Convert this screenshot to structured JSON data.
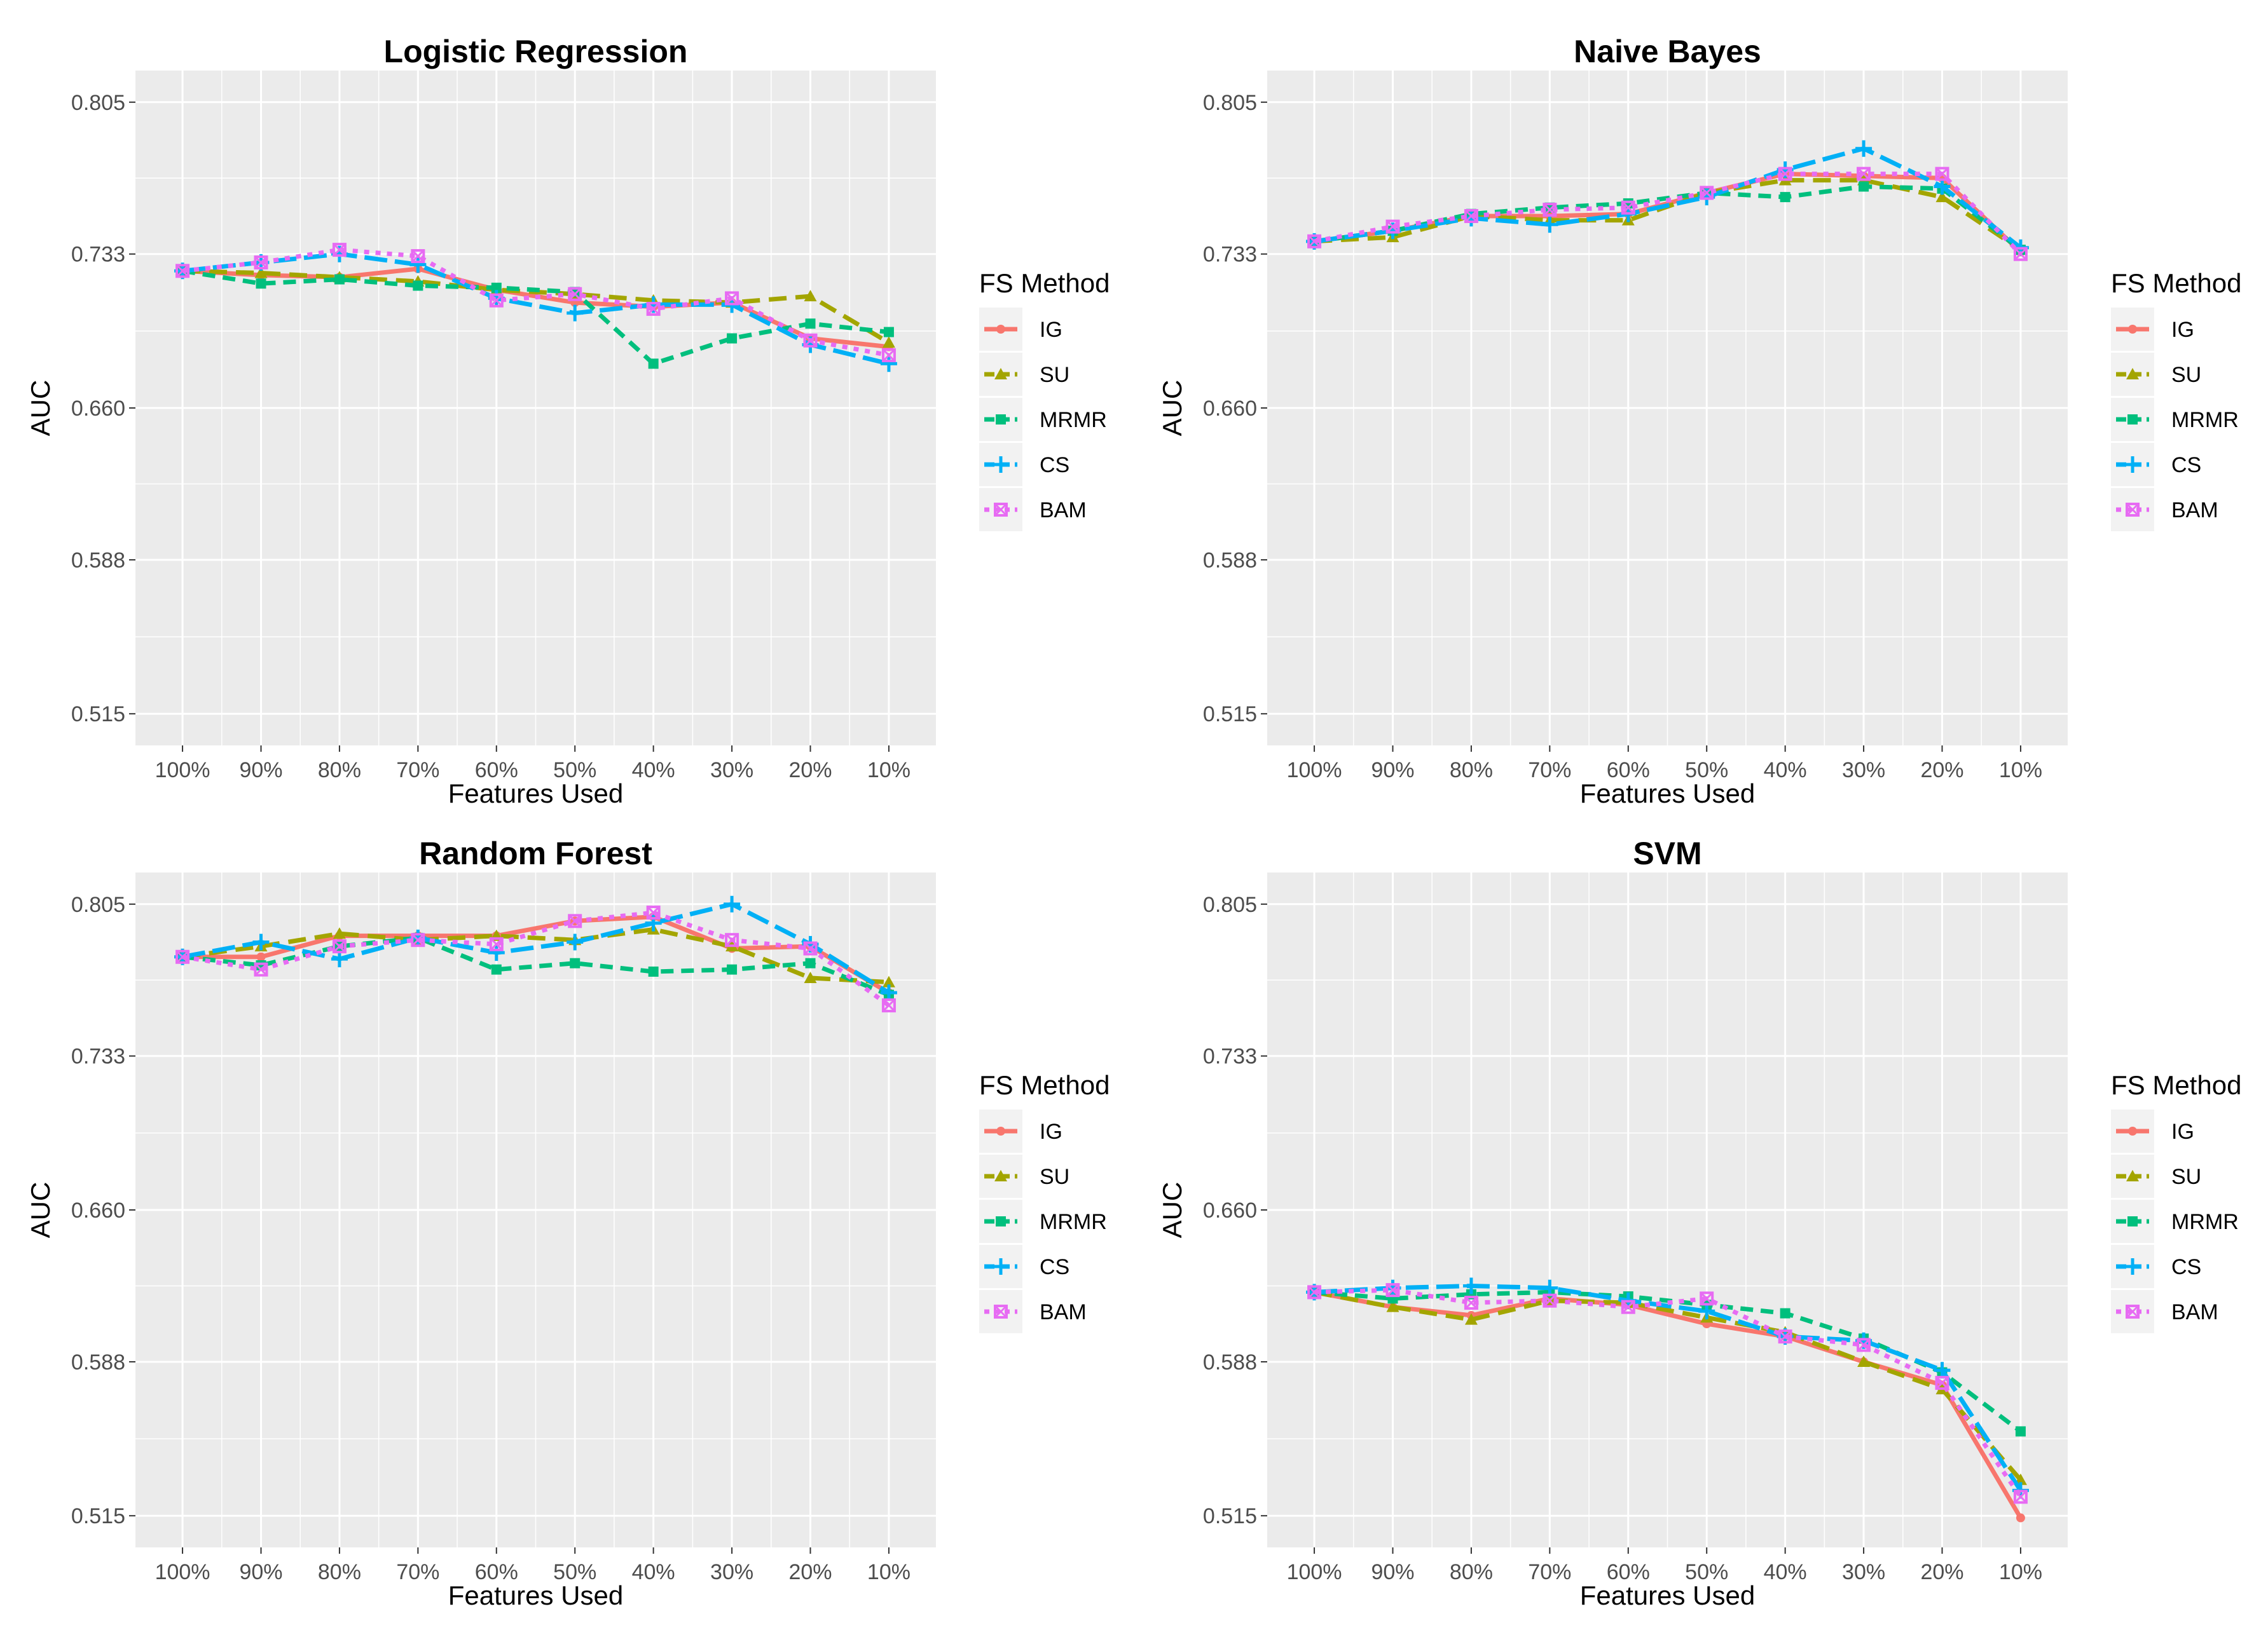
{
  "chart_data": [
    {
      "type": "line",
      "title": "Logistic Regression",
      "xlabel": "Features Used",
      "ylabel": "AUC",
      "ylim": [
        0.5,
        0.82
      ],
      "categories": [
        "100%",
        "90%",
        "80%",
        "70%",
        "60%",
        "50%",
        "40%",
        "30%",
        "20%",
        "10%"
      ],
      "yticks": [
        "0.515",
        "0.588",
        "0.660",
        "0.733",
        "0.805"
      ],
      "legend_title": "FS Method",
      "legend_position": "right",
      "series": [
        {
          "name": "IG",
          "values": [
            0.725,
            0.723,
            0.722,
            0.726,
            0.716,
            0.71,
            0.708,
            0.71,
            0.693,
            0.689
          ]
        },
        {
          "name": "SU",
          "values": [
            0.725,
            0.724,
            0.722,
            0.72,
            0.716,
            0.714,
            0.711,
            0.71,
            0.713,
            0.691
          ]
        },
        {
          "name": "MRMR",
          "values": [
            0.725,
            0.719,
            0.721,
            0.718,
            0.717,
            0.715,
            0.681,
            0.693,
            0.7,
            0.696
          ]
        },
        {
          "name": "CS",
          "values": [
            0.725,
            0.729,
            0.733,
            0.728,
            0.712,
            0.705,
            0.709,
            0.709,
            0.69,
            0.681
          ]
        },
        {
          "name": "BAM",
          "values": [
            0.725,
            0.729,
            0.735,
            0.732,
            0.711,
            0.714,
            0.707,
            0.712,
            0.692,
            0.685
          ]
        }
      ]
    },
    {
      "type": "line",
      "title": "Naive Bayes",
      "xlabel": "Features Used",
      "ylabel": "AUC",
      "ylim": [
        0.5,
        0.82
      ],
      "categories": [
        "100%",
        "90%",
        "80%",
        "70%",
        "60%",
        "50%",
        "40%",
        "30%",
        "20%",
        "10%"
      ],
      "yticks": [
        "0.515",
        "0.588",
        "0.660",
        "0.733",
        "0.805"
      ],
      "legend_title": "FS Method",
      "legend_position": "right",
      "series": [
        {
          "name": "IG",
          "values": [
            0.739,
            0.744,
            0.751,
            0.751,
            0.752,
            0.762,
            0.771,
            0.77,
            0.769,
            0.734
          ]
        },
        {
          "name": "SU",
          "values": [
            0.739,
            0.741,
            0.751,
            0.749,
            0.749,
            0.762,
            0.768,
            0.768,
            0.76,
            0.735
          ]
        },
        {
          "name": "MRMR",
          "values": [
            0.739,
            0.744,
            0.752,
            0.755,
            0.757,
            0.762,
            0.76,
            0.765,
            0.764,
            0.735
          ]
        },
        {
          "name": "CS",
          "values": [
            0.739,
            0.744,
            0.75,
            0.747,
            0.752,
            0.76,
            0.773,
            0.783,
            0.765,
            0.736
          ]
        },
        {
          "name": "BAM",
          "values": [
            0.739,
            0.746,
            0.751,
            0.754,
            0.755,
            0.762,
            0.771,
            0.771,
            0.771,
            0.733
          ]
        }
      ]
    },
    {
      "type": "line",
      "title": "Random Forest",
      "xlabel": "Features Used",
      "ylabel": "AUC",
      "ylim": [
        0.5,
        0.82
      ],
      "categories": [
        "100%",
        "90%",
        "80%",
        "70%",
        "60%",
        "50%",
        "40%",
        "30%",
        "20%",
        "10%"
      ],
      "yticks": [
        "0.515",
        "0.588",
        "0.660",
        "0.733",
        "0.805"
      ],
      "legend_title": "FS Method",
      "legend_position": "right",
      "series": [
        {
          "name": "IG",
          "values": [
            0.78,
            0.78,
            0.79,
            0.79,
            0.79,
            0.797,
            0.799,
            0.784,
            0.785,
            0.763
          ]
        },
        {
          "name": "SU",
          "values": [
            0.78,
            0.785,
            0.791,
            0.788,
            0.79,
            0.788,
            0.793,
            0.785,
            0.77,
            0.768
          ]
        },
        {
          "name": "MRMR",
          "values": [
            0.78,
            0.776,
            0.785,
            0.789,
            0.774,
            0.777,
            0.773,
            0.774,
            0.777,
            0.762
          ]
        },
        {
          "name": "CS",
          "values": [
            0.78,
            0.787,
            0.779,
            0.789,
            0.782,
            0.787,
            0.796,
            0.805,
            0.786,
            0.763
          ]
        },
        {
          "name": "BAM",
          "values": [
            0.78,
            0.774,
            0.785,
            0.788,
            0.786,
            0.797,
            0.801,
            0.788,
            0.784,
            0.757
          ]
        }
      ]
    },
    {
      "type": "line",
      "title": "SVM",
      "xlabel": "Features Used",
      "ylabel": "AUC",
      "ylim": [
        0.5,
        0.82
      ],
      "categories": [
        "100%",
        "90%",
        "80%",
        "70%",
        "60%",
        "50%",
        "40%",
        "30%",
        "20%",
        "10%"
      ],
      "yticks": [
        "0.515",
        "0.588",
        "0.660",
        "0.733",
        "0.805"
      ],
      "legend_title": "FS Method",
      "legend_position": "right",
      "series": [
        {
          "name": "IG",
          "values": [
            0.621,
            0.614,
            0.61,
            0.618,
            0.615,
            0.606,
            0.6,
            0.588,
            0.577,
            0.514
          ]
        },
        {
          "name": "SU",
          "values": [
            0.621,
            0.614,
            0.608,
            0.617,
            0.616,
            0.609,
            0.602,
            0.588,
            0.575,
            0.532
          ]
        },
        {
          "name": "MRMR",
          "values": [
            0.621,
            0.618,
            0.62,
            0.621,
            0.619,
            0.615,
            0.611,
            0.599,
            0.583,
            0.555
          ]
        },
        {
          "name": "CS",
          "values": [
            0.621,
            0.623,
            0.624,
            0.623,
            0.617,
            0.612,
            0.6,
            0.598,
            0.584,
            0.527
          ]
        },
        {
          "name": "BAM",
          "values": [
            0.621,
            0.622,
            0.616,
            0.617,
            0.614,
            0.618,
            0.6,
            0.596,
            0.578,
            0.524
          ]
        }
      ]
    }
  ],
  "colors": {
    "IG": "#F8766D",
    "SU": "#A3A500",
    "MRMR": "#00BF7D",
    "CS": "#00B0F6",
    "BAM": "#E76BF3",
    "panel_background": "#EBEBEB",
    "grid": "#FFFFFF"
  }
}
